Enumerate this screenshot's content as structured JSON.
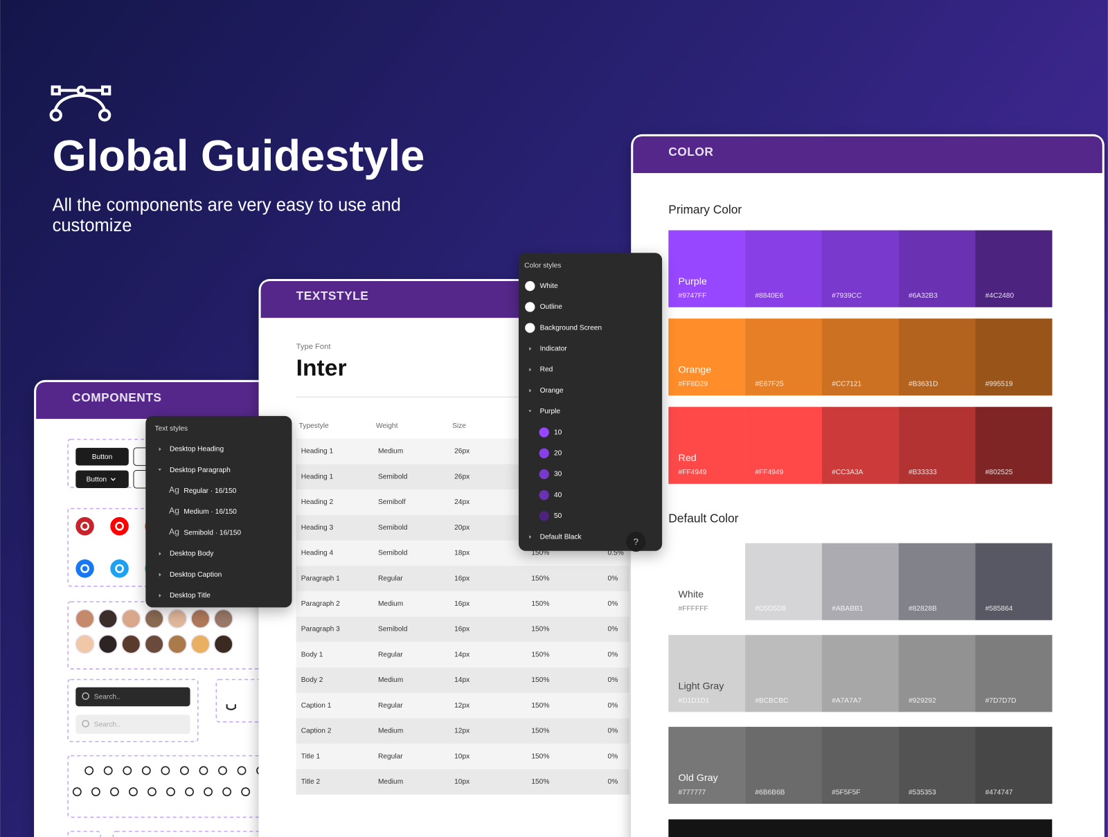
{
  "hero": {
    "title": "Global Guidestyle",
    "subtitle_lines": [
      "All the components are very easy to use and",
      "customize"
    ]
  },
  "components": {
    "header": "COMPONENTS",
    "buttons": [
      "Button",
      "Button"
    ],
    "search": [
      "Search..",
      "Search.."
    ]
  },
  "text_styles_panel": {
    "title": "Text styles",
    "items": [
      {
        "label": "Desktop Heading"
      },
      {
        "label": "Desktop Paragraph",
        "children": [
          {
            "icon": "Ag",
            "label": "Regular · 16/150"
          },
          {
            "icon": "Ag",
            "label": "Medium · 16/150"
          },
          {
            "icon": "Ag",
            "label": "Semibold · 16/150"
          }
        ]
      },
      {
        "label": "Desktop Body"
      },
      {
        "label": "Desktop Caption"
      },
      {
        "label": "Desktop Title"
      }
    ]
  },
  "textstyle": {
    "header": "TEXTSTYLE",
    "font_label": "Type Font",
    "font": "Inter",
    "columns": [
      "Typestyle",
      "Weight",
      "Size"
    ],
    "rows": [
      [
        "Heading 1",
        "Medium",
        "26px"
      ],
      [
        "Heading 1",
        "Semibold",
        "26px"
      ],
      [
        "Heading 2",
        "Semibolf",
        "24px"
      ],
      [
        "Heading 3",
        "Semibold",
        "20px"
      ],
      [
        "Heading 4",
        "Semibold",
        "18px",
        "150%",
        "0.5%"
      ],
      [
        "Paragraph 1",
        "Regular",
        "16px",
        "150%",
        "0%"
      ],
      [
        "Paragraph 2",
        "Medium",
        "16px",
        "150%",
        "0%"
      ],
      [
        "Paragraph 3",
        "Semibold",
        "16px",
        "150%",
        "0%"
      ],
      [
        "Body 1",
        "Regular",
        "14px",
        "150%",
        "0%"
      ],
      [
        "Body 2",
        "Medium",
        "14px",
        "150%",
        "0%"
      ],
      [
        "Caption 1",
        "Regular",
        "12px",
        "150%",
        "0%"
      ],
      [
        "Caption 2",
        "Medium",
        "12px",
        "150%",
        "0%"
      ],
      [
        "Title 1",
        "Regular",
        "10px",
        "150%",
        "0%"
      ],
      [
        "Title 2",
        "Medium",
        "10px",
        "150%",
        "0%"
      ]
    ]
  },
  "color_styles_panel": {
    "title": "Color styles",
    "help": "?",
    "items": [
      {
        "label": "White",
        "swatch": "#FFFFFF"
      },
      {
        "label": "Outline",
        "swatch": "#FFFFFF"
      },
      {
        "label": "Background Screen",
        "swatch": "#FFFFFF"
      },
      {
        "label": "Indicator"
      },
      {
        "label": "Red"
      },
      {
        "label": "Orange"
      },
      {
        "label": "Purple",
        "expanded": true,
        "children": [
          {
            "label": "10",
            "swatch": "#9747FF"
          },
          {
            "label": "20",
            "swatch": "#8840E6"
          },
          {
            "label": "30",
            "swatch": "#7939CC"
          },
          {
            "label": "40",
            "swatch": "#6A32B3"
          },
          {
            "label": "50",
            "swatch": "#4C2480"
          }
        ]
      },
      {
        "label": "Default Black"
      }
    ]
  },
  "color": {
    "header": "COLOR",
    "sections": [
      {
        "title": "Primary Color",
        "rows": [
          {
            "name": "Purple",
            "swatches": [
              "#9747FF",
              "#8840E6",
              "#7939CC",
              "#6A32B3",
              "#4C2480"
            ]
          },
          {
            "name": "Orange",
            "swatches": [
              "#FF8D29",
              "#E67F25",
              "#CC7121",
              "#B3631D",
              "#995519"
            ]
          },
          {
            "name": "Red",
            "swatches": [
              "#FF4949",
              "#FF4949",
              "#CC3A3A",
              "#B33333",
              "#802525"
            ]
          }
        ]
      },
      {
        "title": "Default Color",
        "rows": [
          {
            "name": "White",
            "swatches": [
              "#FFFFFF",
              "#D5D5D8",
              "#ABABB1",
              "#82828B",
              "#585864"
            ]
          },
          {
            "name": "Light Gray",
            "swatches": [
              "#D1D1D1",
              "#BCBCBC",
              "#A7A7A7",
              "#929292",
              "#7D7D7D"
            ]
          },
          {
            "name": "Old Gray",
            "swatches": [
              "#777777",
              "#6B6B6B",
              "#5F5F5F",
              "#535353",
              "#474747"
            ]
          }
        ]
      }
    ]
  }
}
